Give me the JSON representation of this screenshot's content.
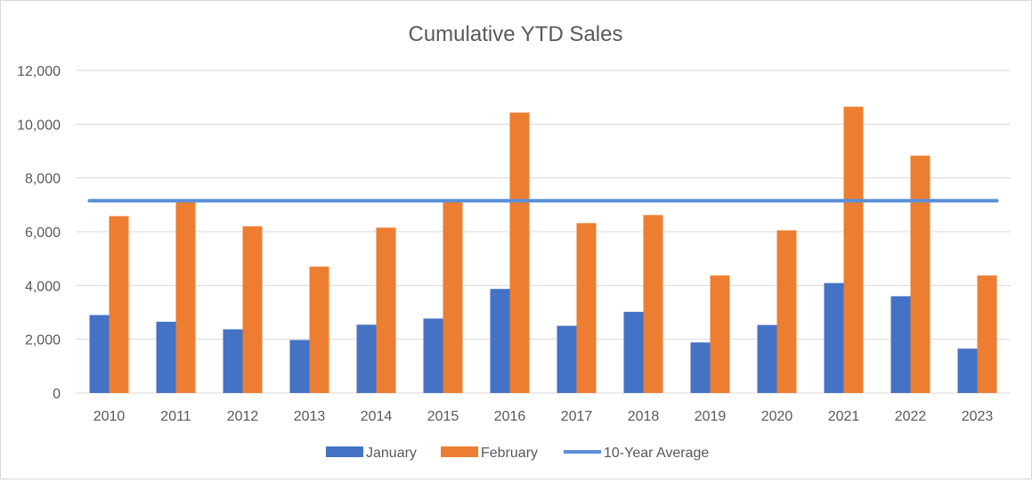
{
  "chart_data": {
    "type": "bar",
    "title": "Cumulative YTD Sales",
    "xlabel": "",
    "ylabel": "",
    "ylim": [
      0,
      12000
    ],
    "yticks": [
      0,
      2000,
      4000,
      6000,
      8000,
      10000,
      12000
    ],
    "ytick_labels": [
      "0",
      "2,000",
      "4,000",
      "6,000",
      "8,000",
      "10,000",
      "12,000"
    ],
    "grid": true,
    "legend_position": "bottom",
    "categories": [
      "2010",
      "2011",
      "2012",
      "2013",
      "2014",
      "2015",
      "2016",
      "2017",
      "2018",
      "2019",
      "2020",
      "2021",
      "2022",
      "2023"
    ],
    "series": [
      {
        "name": "January",
        "kind": "bar",
        "color": "#4472C4",
        "values": [
          2900,
          2650,
          2370,
          1970,
          2540,
          2770,
          3870,
          2500,
          3020,
          1880,
          2530,
          4090,
          3600,
          1650
        ]
      },
      {
        "name": "February",
        "kind": "bar",
        "color": "#ED7D31",
        "values": [
          6580,
          7120,
          6200,
          4700,
          6150,
          7150,
          10430,
          6320,
          6620,
          4370,
          6050,
          10650,
          8830,
          4370
        ]
      },
      {
        "name": "10-Year Average",
        "kind": "line",
        "color": "#5B8FD9",
        "values": [
          7150,
          7150,
          7150,
          7150,
          7150,
          7150,
          7150,
          7150,
          7150,
          7150,
          7150,
          7150,
          7150,
          7150
        ]
      }
    ]
  }
}
